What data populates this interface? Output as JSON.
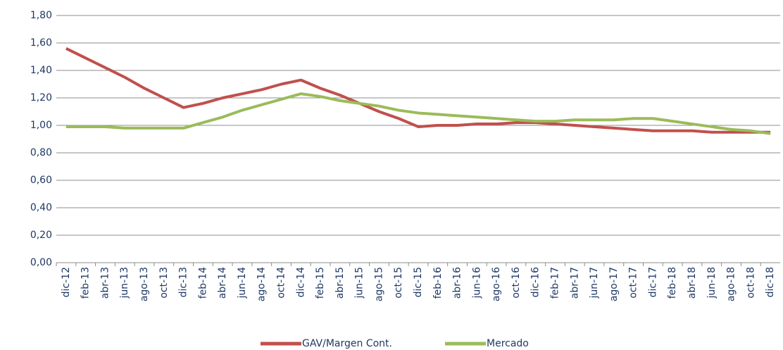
{
  "chart_data": {
    "type": "line",
    "categories": [
      "dic-12",
      "feb-13",
      "abr-13",
      "jun-13",
      "ago-13",
      "oct-13",
      "dic-13",
      "feb-14",
      "abr-14",
      "jun-14",
      "ago-14",
      "oct-14",
      "dic-14",
      "feb-15",
      "abr-15",
      "jun-15",
      "ago-15",
      "oct-15",
      "dic-15",
      "feb-16",
      "abr-16",
      "jun-16",
      "ago-16",
      "oct-16",
      "dic-16",
      "feb-17",
      "abr-17",
      "jun-17",
      "ago-17",
      "oct-17",
      "dic-17",
      "feb-18",
      "abr-18",
      "jun-18",
      "ago-18",
      "oct-18",
      "dic-18"
    ],
    "series": [
      {
        "name": "GAV/Margen Cont.",
        "color": "#c0504d",
        "values": [
          1.56,
          1.49,
          1.42,
          1.35,
          1.27,
          1.2,
          1.13,
          1.16,
          1.2,
          1.23,
          1.26,
          1.3,
          1.33,
          1.27,
          1.22,
          1.16,
          1.1,
          1.05,
          0.99,
          1.0,
          1.0,
          1.01,
          1.01,
          1.02,
          1.02,
          1.01,
          1.0,
          0.99,
          0.98,
          0.97,
          0.96,
          0.96,
          0.96,
          0.95,
          0.95,
          0.95,
          0.95
        ]
      },
      {
        "name": "Mercado",
        "color": "#9bbb59",
        "values": [
          0.99,
          0.99,
          0.99,
          0.98,
          0.98,
          0.98,
          0.98,
          1.02,
          1.06,
          1.11,
          1.15,
          1.19,
          1.23,
          1.21,
          1.18,
          1.16,
          1.14,
          1.11,
          1.09,
          1.08,
          1.07,
          1.06,
          1.05,
          1.04,
          1.03,
          1.03,
          1.04,
          1.04,
          1.04,
          1.05,
          1.05,
          1.03,
          1.01,
          0.99,
          0.97,
          0.96,
          0.94
        ]
      }
    ],
    "ylim": [
      0,
      1.8
    ],
    "yticks": [
      {
        "value": 0,
        "label": "0,00"
      },
      {
        "value": 0.2,
        "label": "0,20"
      },
      {
        "value": 0.4,
        "label": "0,40"
      },
      {
        "value": 0.6,
        "label": "0,60"
      },
      {
        "value": 0.8,
        "label": "0,80"
      },
      {
        "value": 1,
        "label": "1,00"
      },
      {
        "value": 1.2,
        "label": "1,20"
      },
      {
        "value": 1.4,
        "label": "1,40"
      },
      {
        "value": 1.6,
        "label": "1,60"
      },
      {
        "value": 1.8,
        "label": "1,80"
      }
    ],
    "grid": true,
    "legend": "bottom"
  }
}
